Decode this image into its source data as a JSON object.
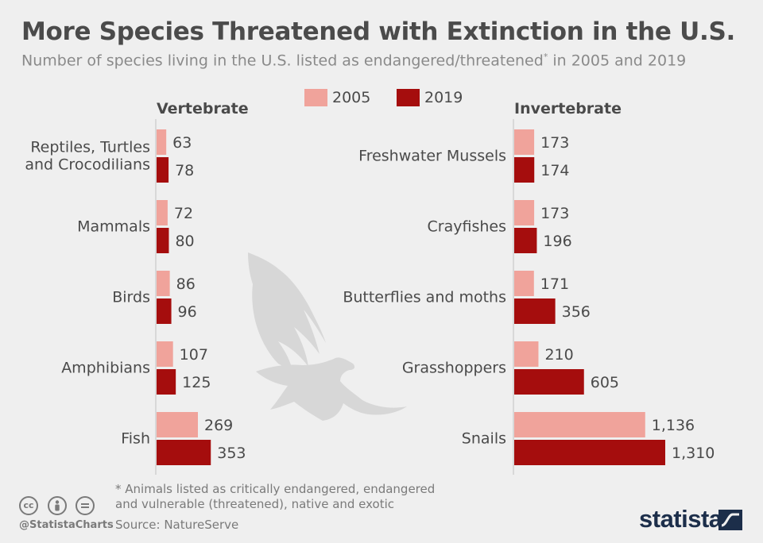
{
  "title": "More Species Threatened with Extinction in the U.S.",
  "subtitle": "Number of species living in the U.S. listed as endangered/threatened",
  "subtitle_mark": "*",
  "subtitle_suffix": " in 2005 and 2019",
  "legend": [
    {
      "label": "2005",
      "color": "#f0a39b"
    },
    {
      "label": "2019",
      "color": "#a50d0d"
    }
  ],
  "footnote": "* Animals listed as critically endangered, endangered and vulnerable (threatened), native and exotic",
  "source": "Source: NatureServe",
  "handle": "@StatistaCharts",
  "brand": "statista",
  "icons": [
    "cc-icon",
    "by-icon",
    "nd-icon",
    "eagle-silhouette-icon"
  ],
  "chart_data": [
    {
      "type": "bar",
      "orientation": "horizontal",
      "title": "Vertebrate",
      "categories": [
        "Reptiles, Turtles and Crocodilians",
        "Mammals",
        "Birds",
        "Amphibians",
        "Fish"
      ],
      "series": [
        {
          "name": "2005",
          "values": [
            63,
            72,
            86,
            107,
            269
          ]
        },
        {
          "name": "2019",
          "values": [
            78,
            80,
            96,
            125,
            353
          ]
        }
      ]
    },
    {
      "type": "bar",
      "orientation": "horizontal",
      "title": "Invertebrate",
      "categories": [
        "Freshwater Mussels",
        "Crayfishes",
        "Butterflies and moths",
        "Grasshoppers",
        "Snails"
      ],
      "series": [
        {
          "name": "2005",
          "values": [
            173,
            173,
            171,
            210,
            1136
          ]
        },
        {
          "name": "2019",
          "values": [
            174,
            196,
            356,
            605,
            1310
          ]
        }
      ]
    }
  ]
}
